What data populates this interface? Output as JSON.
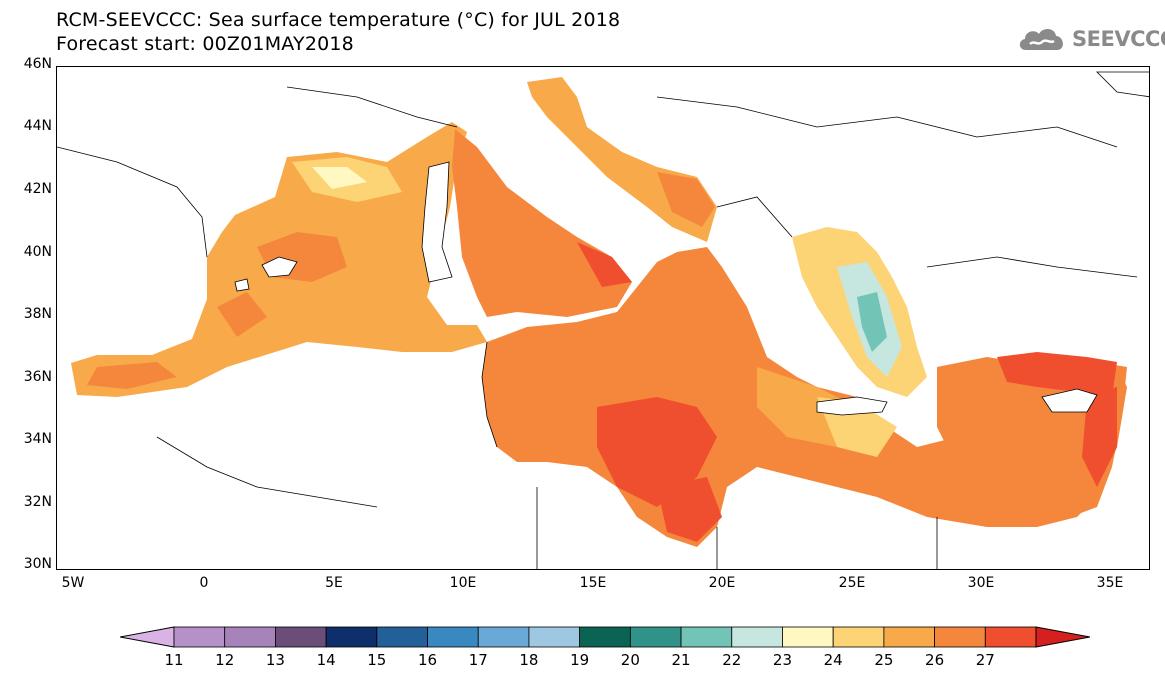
{
  "header": {
    "title": "RCM-SEEVCCC: Sea surface temperature (°C) for JUL 2018",
    "subtitle": "Forecast start: 00Z01MAY2018"
  },
  "logo": {
    "text": "SEEVCCC",
    "icon": "cloud-icon"
  },
  "map": {
    "lat_range": [
      30,
      46
    ],
    "lon_range": [
      -5.5,
      36.5
    ],
    "lat_labels": [
      "46N",
      "44N",
      "42N",
      "40N",
      "38N",
      "36N",
      "34N",
      "32N",
      "30N"
    ],
    "lon_labels": [
      "5W",
      "0",
      "5E",
      "10E",
      "15E",
      "20E",
      "25E",
      "30E",
      "35E"
    ]
  },
  "legend": {
    "labels": [
      "11",
      "12",
      "13",
      "14",
      "15",
      "16",
      "17",
      "18",
      "19",
      "20",
      "21",
      "22",
      "23",
      "24",
      "25",
      "26",
      "27"
    ],
    "colors": [
      "#b590c9",
      "#a684bb",
      "#6a4d79",
      "#0f2f6b",
      "#23609a",
      "#3a88c0",
      "#6aa9d7",
      "#9ec8e2",
      "#0b6453",
      "#31928a",
      "#72c4b7",
      "#c5e7e0",
      "#fff8c3",
      "#fcd475",
      "#f8aa4a",
      "#f5873d",
      "#f04f2f"
    ],
    "under_color": "#d9b3e6",
    "over_color": "#d62020"
  }
}
